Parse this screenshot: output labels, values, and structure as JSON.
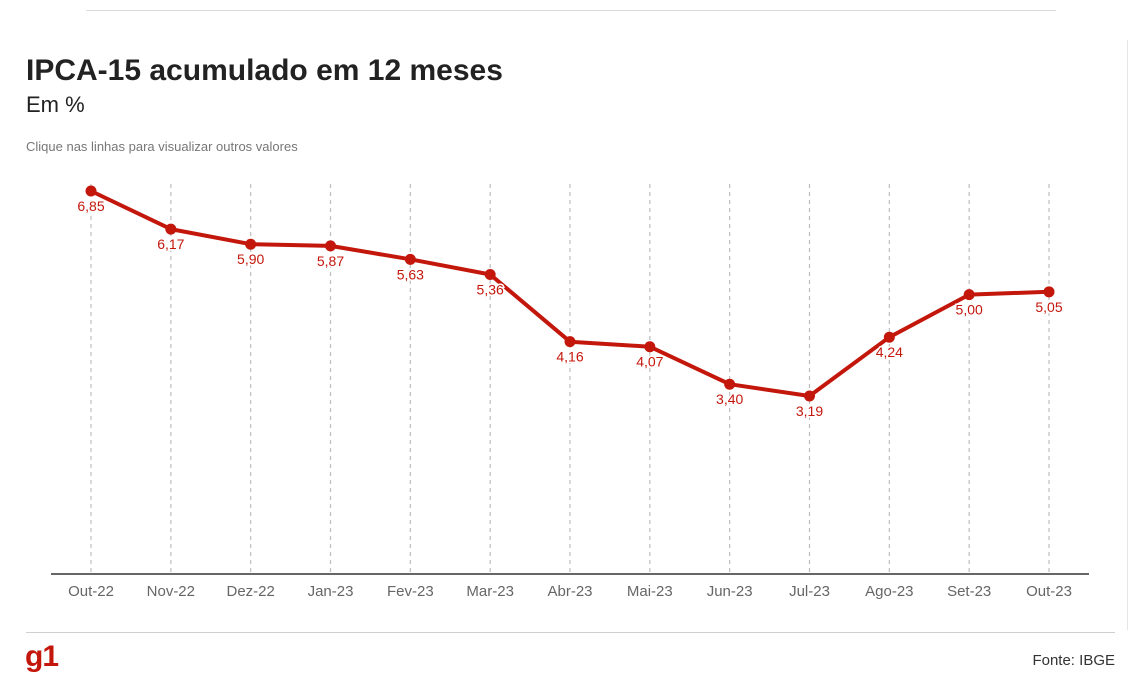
{
  "title": "IPCA-15 acumulado em 12 meses",
  "subtitle": "Em %",
  "hint": "Clique nas linhas para visualizar outros valores",
  "logo": "g1",
  "source": "Fonte: IBGE",
  "colors": {
    "line": "#c4170c",
    "label": "#c4170c",
    "grid": "#bdbdbd",
    "axis": "#333333",
    "tick": "#666666"
  },
  "chart_data": {
    "type": "line",
    "categories": [
      "Out-22",
      "Nov-22",
      "Dez-22",
      "Jan-23",
      "Fev-23",
      "Mar-23",
      "Abr-23",
      "Mai-23",
      "Jun-23",
      "Jul-23",
      "Ago-23",
      "Set-23",
      "Out-23"
    ],
    "series": [
      {
        "values": [
          6.85,
          6.17,
          5.9,
          5.87,
          5.63,
          5.36,
          4.16,
          4.07,
          3.4,
          3.19,
          4.24,
          5.0,
          5.05
        ]
      }
    ],
    "data_labels": [
      "6,85",
      "6,17",
      "5,90",
      "5,87",
      "5,63",
      "5,36",
      "4,16",
      "4,07",
      "3,40",
      "3,19",
      "4,24",
      "5,00",
      "5,05"
    ],
    "ylim": [
      0,
      7
    ],
    "grid": "vertical-dashed",
    "xlabel": "",
    "ylabel": ""
  }
}
